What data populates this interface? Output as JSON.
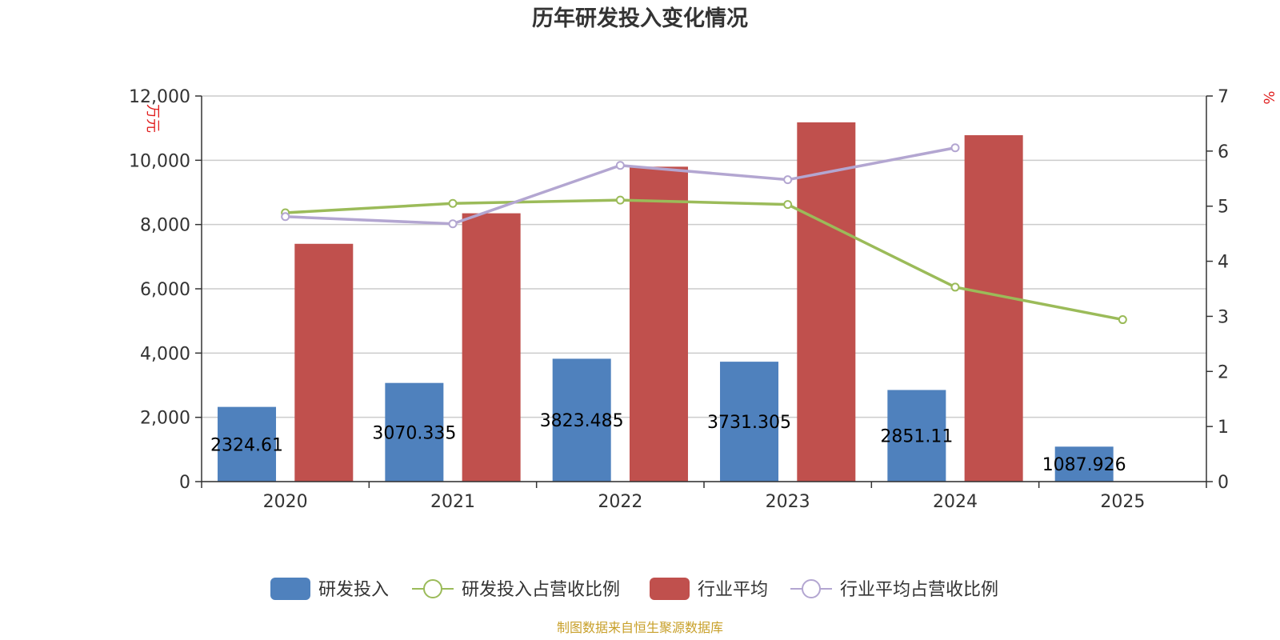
{
  "chart_data": {
    "type": "bar",
    "title": "历年研发投入变化情况",
    "categories": [
      "2020",
      "2021",
      "2022",
      "2023",
      "2024",
      "2025"
    ],
    "left_axis": {
      "unit": "万元",
      "ylim": [
        0,
        12000
      ],
      "ticks": [
        "0",
        "2,000",
        "4,000",
        "6,000",
        "8,000",
        "10,000",
        "12,000"
      ]
    },
    "right_axis": {
      "unit": "%",
      "ylim": [
        0,
        7
      ],
      "ticks": [
        "0",
        "1",
        "2",
        "3",
        "4",
        "5",
        "6",
        "7"
      ]
    },
    "series": [
      {
        "name": "研发投入",
        "type": "bar",
        "axis": "left",
        "color": "#4f81bd",
        "values": [
          2324.61,
          3070.335,
          3823.485,
          3731.305,
          2851.11,
          1087.926
        ],
        "labels": [
          "2324.61",
          "3070.335",
          "3823.485",
          "3731.305",
          "2851.11",
          "1087.926"
        ]
      },
      {
        "name": "研发投入占营收比例",
        "type": "line",
        "axis": "right",
        "color": "#9bbb59",
        "values": [
          4.88,
          5.05,
          5.11,
          5.03,
          3.53,
          2.94
        ]
      },
      {
        "name": "行业平均",
        "type": "bar",
        "axis": "left",
        "color": "#c0504d",
        "values": [
          7400,
          8350,
          9800,
          11180,
          10780,
          null
        ]
      },
      {
        "name": "行业平均占营收比例",
        "type": "line",
        "axis": "right",
        "color": "#b3a6d1",
        "values": [
          4.81,
          4.68,
          5.74,
          5.48,
          6.06,
          null
        ]
      }
    ],
    "grid": true,
    "legend_position": "bottom",
    "source": "制图数据来自恒生聚源数据库"
  }
}
